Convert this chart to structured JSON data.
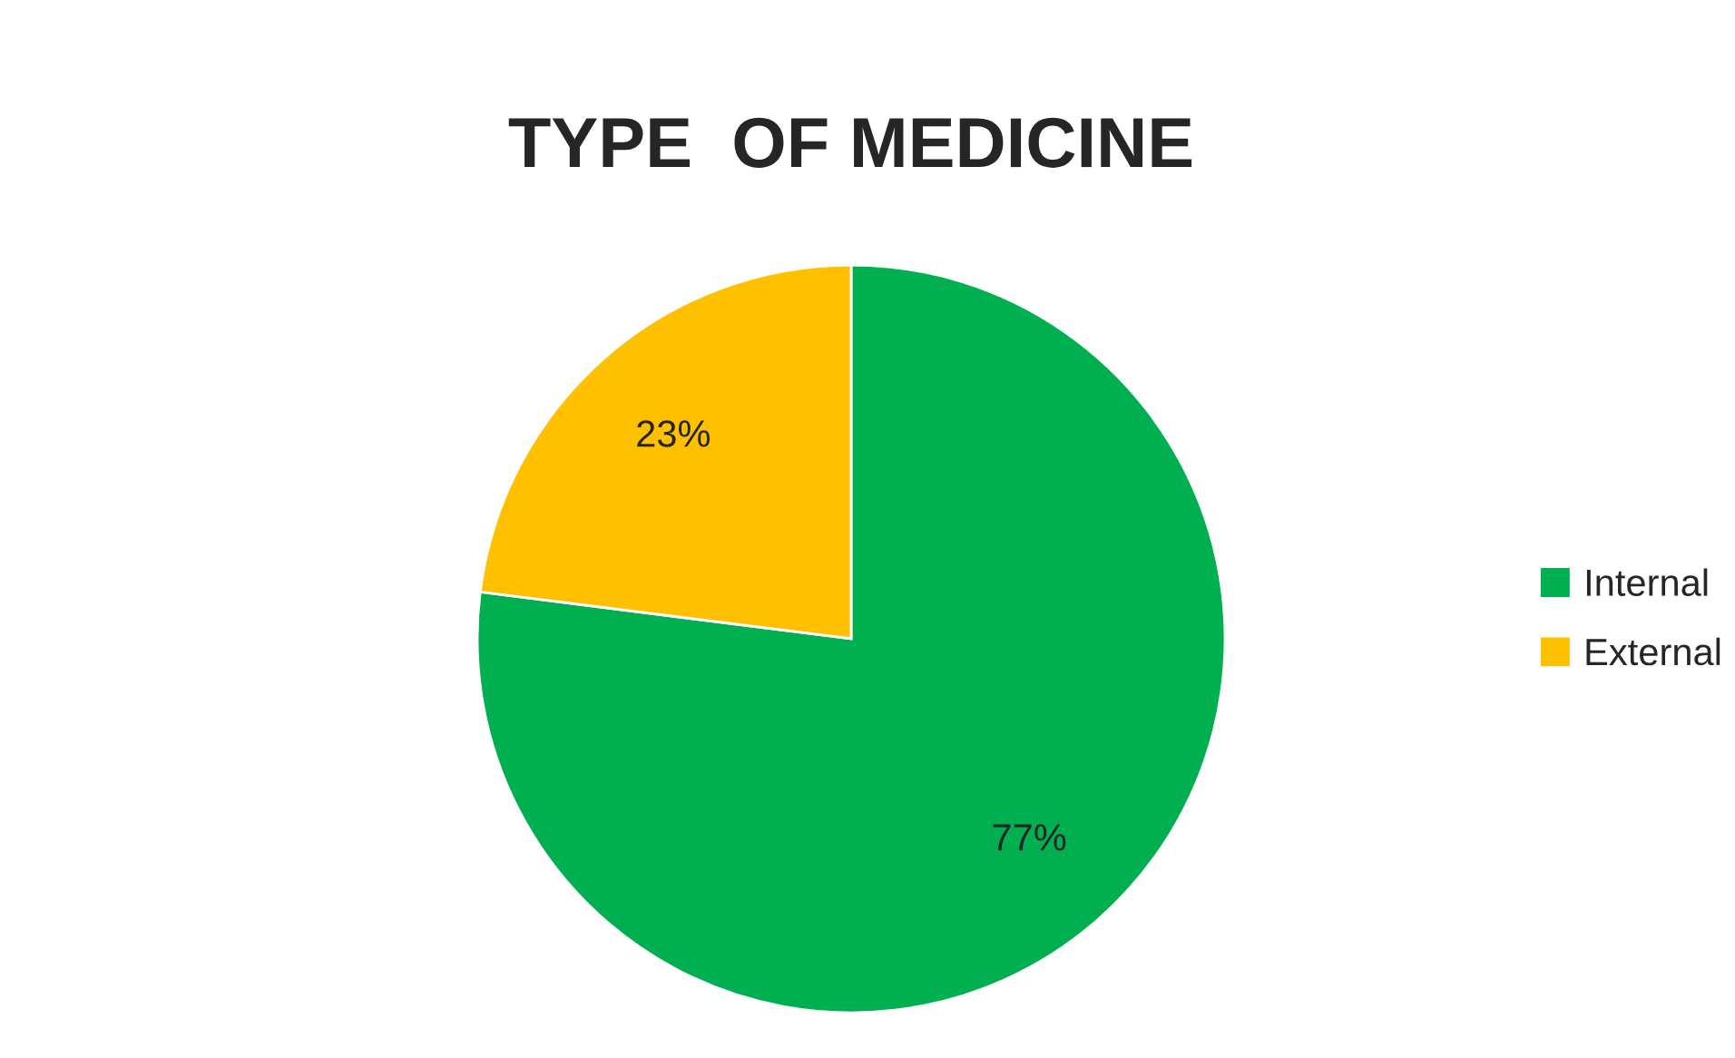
{
  "chart_data": {
    "type": "pie",
    "title": "TYPE  OF MEDICINE",
    "categories": [
      "Internal",
      "External"
    ],
    "values": [
      77,
      23
    ],
    "colors": [
      "#00b050",
      "#ffc000"
    ],
    "value_labels": [
      "77%",
      "23%"
    ],
    "legend": "right"
  }
}
